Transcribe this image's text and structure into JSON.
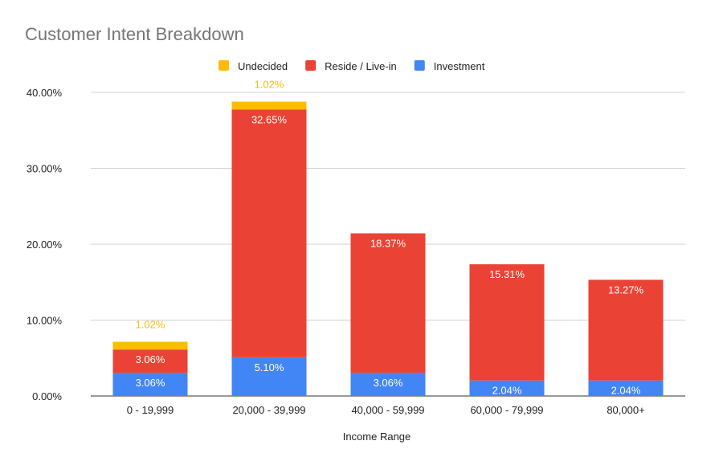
{
  "chart_data": {
    "type": "bar",
    "stacked": true,
    "title": "Customer Intent Breakdown",
    "xlabel": "Income Range",
    "ylabel": "",
    "ylim": [
      0,
      40
    ],
    "yticks": [
      0,
      10,
      20,
      30,
      40
    ],
    "ytick_labels": [
      "0.00%",
      "10.00%",
      "20.00%",
      "30.00%",
      "40.00%"
    ],
    "grid": true,
    "legend_position": "top",
    "categories": [
      "0 - 19,999",
      "20,000 - 39,999",
      "40,000 - 59,999",
      "60,000 - 79,999",
      "80,000+"
    ],
    "series": [
      {
        "name": "Investment",
        "color": "#4285f4",
        "label_color": "#ffffff",
        "values": [
          3.06,
          5.1,
          3.06,
          2.04,
          2.04
        ],
        "labels": [
          "3.06%",
          "5.10%",
          "3.06%",
          "2.04%",
          "2.04%"
        ]
      },
      {
        "name": "Reside / Live-in",
        "color": "#ea4335",
        "label_color": "#ffffff",
        "values": [
          3.06,
          32.65,
          18.37,
          15.31,
          13.27
        ],
        "labels": [
          "3.06%",
          "32.65%",
          "18.37%",
          "15.31%",
          "13.27%"
        ]
      },
      {
        "name": "Undecided",
        "color": "#fbbc04",
        "label_color": "#fbbc04",
        "values": [
          1.02,
          1.02,
          0,
          0,
          0
        ],
        "labels": [
          "1.02%",
          "1.02%",
          "",
          "",
          ""
        ]
      }
    ],
    "legend_order": [
      "Undecided",
      "Reside / Live-in",
      "Investment"
    ]
  }
}
